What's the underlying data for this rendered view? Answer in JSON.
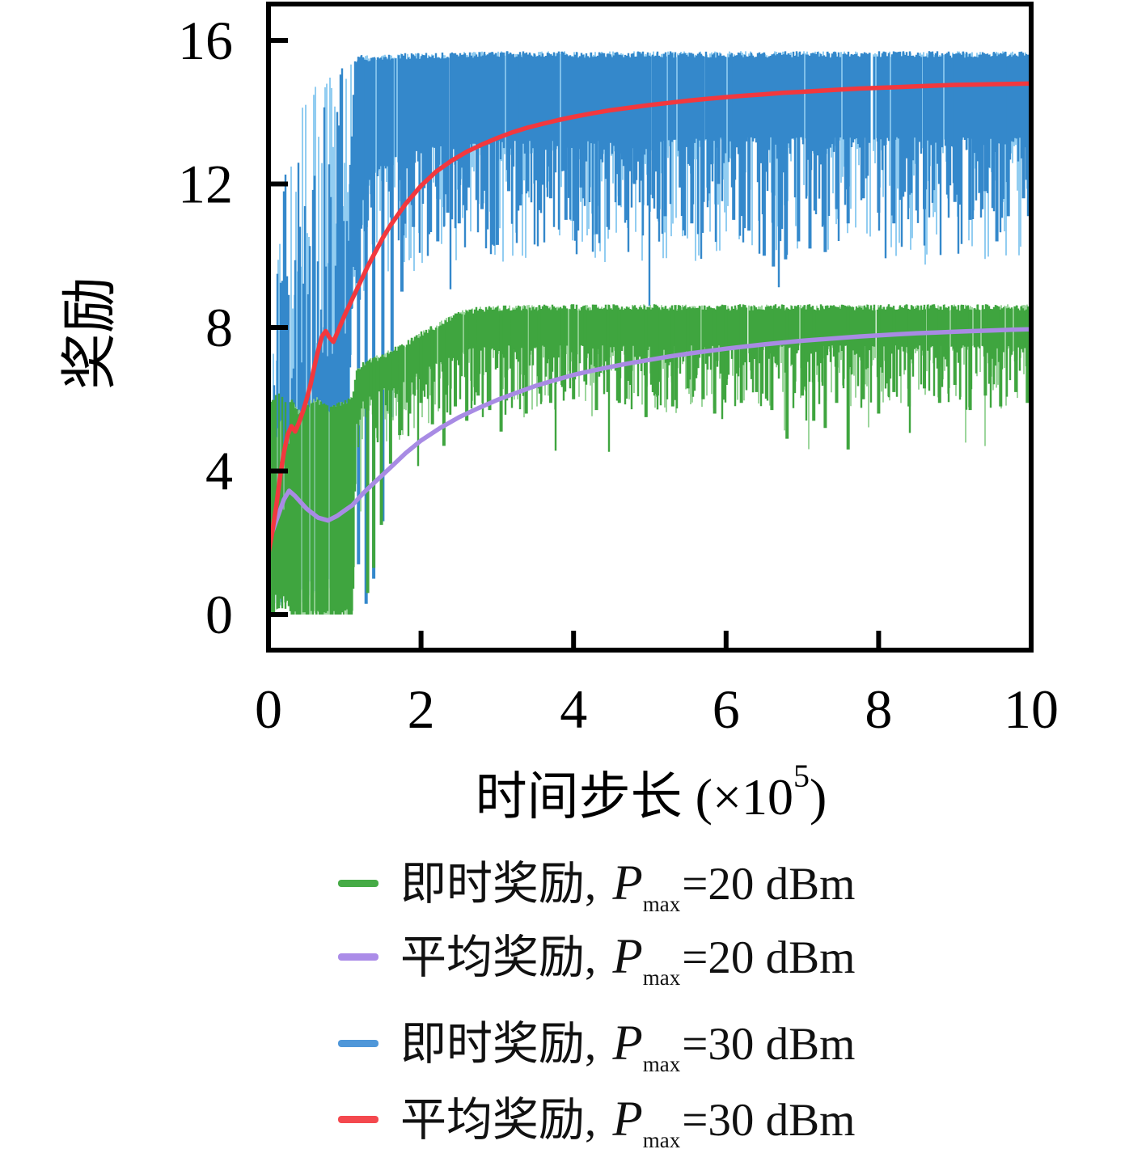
{
  "figure": {
    "background": "#ffffff",
    "axis_color": "#000000",
    "ylabel": "奖励",
    "xlabel": {
      "text": "时间步长",
      "unit_prefix": " (×10",
      "unit_sup": "5",
      "unit_suffix": ")"
    }
  },
  "chart_data": {
    "type": "line",
    "title": "",
    "xlabel": "时间步长 (×10⁵)",
    "ylabel": "奖励",
    "xlim": [
      0,
      10
    ],
    "ylim": [
      0,
      16
    ],
    "xticks": [
      0,
      2,
      4,
      6,
      8,
      10
    ],
    "yticks": [
      0,
      4,
      8,
      12,
      16
    ],
    "grid": false,
    "legend_position": "below-left",
    "series": [
      {
        "name": "即时奖励, Pmax=30 dBm",
        "kind": "noisy",
        "color": "#3488cb",
        "color_light": "#7fc4ee",
        "seed": 1337,
        "seed_light": 77,
        "band": {
          "x": [
            0,
            0.1,
            0.2,
            0.3,
            0.4,
            0.5,
            0.6,
            0.7,
            0.8,
            0.9,
            1.0,
            1.05,
            1.1,
            1.2,
            1.4,
            1.7,
            2.0,
            3.0,
            4.0,
            5.0,
            6.0,
            7.0,
            8.0,
            9.0,
            10.0
          ],
          "top": [
            6.5,
            9.5,
            12.0,
            13.4,
            14.0,
            14.5,
            14.8,
            15.0,
            15.2,
            15.35,
            15.45,
            15.5,
            15.55,
            15.6,
            15.6,
            15.65,
            15.65,
            15.7,
            15.7,
            15.7,
            15.7,
            15.7,
            15.7,
            15.7,
            15.7
          ],
          "bottom": [
            0.2,
            0.2,
            0.25,
            0.3,
            0.3,
            0.35,
            0.4,
            0.5,
            0.7,
            1.0,
            2.0,
            5.0,
            9.0,
            11.8,
            12.4,
            12.8,
            13.0,
            13.2,
            13.2,
            13.2,
            13.3,
            13.3,
            13.3,
            13.3,
            13.3
          ]
        },
        "spikes": [
          [
            1.18,
            1.4
          ],
          [
            1.28,
            0.3
          ],
          [
            1.38,
            1.0
          ],
          [
            1.5,
            2.6
          ],
          [
            1.62,
            5.5
          ],
          [
            1.75,
            9.0
          ],
          [
            1.9,
            10.8
          ],
          [
            2.1,
            10.6
          ],
          [
            2.22,
            10.4
          ],
          [
            2.35,
            11.2
          ],
          [
            2.5,
            10.9
          ],
          [
            2.62,
            11.9
          ],
          [
            2.8,
            11.3
          ],
          [
            3.0,
            10.3
          ],
          [
            3.15,
            11.8
          ],
          [
            3.3,
            11.4
          ],
          [
            3.5,
            12.1
          ],
          [
            3.7,
            11.6
          ],
          [
            3.9,
            11.0
          ],
          [
            4.1,
            11.9
          ],
          [
            4.3,
            10.6
          ],
          [
            4.45,
            10.8
          ],
          [
            4.6,
            11.4
          ],
          [
            4.8,
            12.0
          ],
          [
            5.0,
            11.7
          ],
          [
            5.2,
            11.1
          ],
          [
            5.4,
            11.9
          ],
          [
            5.55,
            10.9
          ],
          [
            5.7,
            11.5
          ],
          [
            5.9,
            12.0
          ],
          [
            6.1,
            11.0
          ],
          [
            6.3,
            10.7
          ],
          [
            6.5,
            10.0
          ],
          [
            6.62,
            9.7
          ],
          [
            6.78,
            9.9
          ],
          [
            6.95,
            10.4
          ],
          [
            7.1,
            10.2
          ],
          [
            7.3,
            10.1
          ],
          [
            7.45,
            11.3
          ],
          [
            7.6,
            10.9
          ],
          [
            7.8,
            11.6
          ],
          [
            8.0,
            11.2
          ],
          [
            8.2,
            10.9
          ],
          [
            8.4,
            11.7
          ],
          [
            8.6,
            11.3
          ],
          [
            8.8,
            12.0
          ],
          [
            9.0,
            11.5
          ],
          [
            9.2,
            11.0
          ],
          [
            9.4,
            11.8
          ],
          [
            9.55,
            10.4
          ],
          [
            9.7,
            11.1
          ],
          [
            9.9,
            11.6
          ]
        ]
      },
      {
        "name": "即时奖励, Pmax=20 dBm",
        "kind": "noisy",
        "color": "#3fa53f",
        "color_light": "#8ccf8c",
        "seed": 4242,
        "seed_light": 99,
        "band": {
          "x": [
            0,
            0.2,
            0.4,
            0.6,
            0.8,
            1.0,
            1.1,
            1.15,
            1.3,
            1.5,
            1.8,
            2.0,
            2.3,
            2.6,
            3.0,
            4.0,
            5.0,
            6.0,
            7.0,
            8.0,
            9.0,
            10.0
          ],
          "top": [
            5.9,
            6.4,
            5.7,
            6.1,
            5.8,
            6.0,
            6.1,
            6.9,
            7.15,
            7.3,
            7.6,
            7.9,
            8.25,
            8.55,
            8.62,
            8.65,
            8.65,
            8.65,
            8.65,
            8.65,
            8.65,
            8.65
          ],
          "bottom": [
            0.1,
            0.1,
            0.1,
            0.1,
            0.1,
            0.1,
            0.3,
            5.7,
            6.1,
            6.3,
            6.5,
            6.8,
            7.1,
            7.4,
            7.5,
            7.5,
            7.5,
            7.5,
            7.5,
            7.5,
            7.5,
            7.5
          ]
        },
        "spikes": [
          [
            1.3,
            0.6
          ],
          [
            1.38,
            1.3
          ],
          [
            1.48,
            2.5
          ],
          [
            1.6,
            4.2
          ],
          [
            1.72,
            5.0
          ],
          [
            1.85,
            5.6
          ],
          [
            2.0,
            5.9
          ],
          [
            2.15,
            5.3
          ],
          [
            2.3,
            4.7
          ],
          [
            2.45,
            5.8
          ],
          [
            2.6,
            5.4
          ],
          [
            2.75,
            6.1
          ],
          [
            2.9,
            5.7
          ],
          [
            3.05,
            5.1
          ],
          [
            3.2,
            6.2
          ],
          [
            3.38,
            5.6
          ],
          [
            3.55,
            6.3
          ],
          [
            3.7,
            5.9
          ],
          [
            3.85,
            6.4
          ],
          [
            4.0,
            6.0
          ],
          [
            4.15,
            6.5
          ],
          [
            4.3,
            5.7
          ],
          [
            4.45,
            6.2
          ],
          [
            4.6,
            5.9
          ],
          [
            4.75,
            6.4
          ],
          [
            4.95,
            5.5
          ],
          [
            5.1,
            6.1
          ],
          [
            5.3,
            5.8
          ],
          [
            5.5,
            6.3
          ],
          [
            5.7,
            6.0
          ],
          [
            5.85,
            5.6
          ],
          [
            6.0,
            6.4
          ],
          [
            6.2,
            5.9
          ],
          [
            6.4,
            6.2
          ],
          [
            6.6,
            5.7
          ],
          [
            6.8,
            4.9
          ],
          [
            7.0,
            6.1
          ],
          [
            7.15,
            5.4
          ],
          [
            7.3,
            5.2
          ],
          [
            7.45,
            5.9
          ],
          [
            7.6,
            4.6
          ],
          [
            7.8,
            6.0
          ],
          [
            8.0,
            5.6
          ],
          [
            8.2,
            6.2
          ],
          [
            8.4,
            5.8
          ],
          [
            8.6,
            6.3
          ],
          [
            8.8,
            5.9
          ],
          [
            9.0,
            6.4
          ],
          [
            9.2,
            5.7
          ],
          [
            9.4,
            6.1
          ],
          [
            9.6,
            5.8
          ],
          [
            9.8,
            6.2
          ],
          [
            9.95,
            5.9
          ]
        ]
      },
      {
        "name": "平均奖励, Pmax=20 dBm",
        "kind": "smooth",
        "color": "#a88be4",
        "points": [
          [
            0,
            2.0
          ],
          [
            0.1,
            2.6
          ],
          [
            0.2,
            3.2
          ],
          [
            0.27,
            3.45
          ],
          [
            0.35,
            3.3
          ],
          [
            0.5,
            2.95
          ],
          [
            0.65,
            2.7
          ],
          [
            0.78,
            2.62
          ],
          [
            0.9,
            2.75
          ],
          [
            1.0,
            2.9
          ],
          [
            1.1,
            3.05
          ],
          [
            1.25,
            3.4
          ],
          [
            1.4,
            3.7
          ],
          [
            1.6,
            4.1
          ],
          [
            1.8,
            4.5
          ],
          [
            2.0,
            4.85
          ],
          [
            2.25,
            5.2
          ],
          [
            2.5,
            5.5
          ],
          [
            2.75,
            5.75
          ],
          [
            3.0,
            5.98
          ],
          [
            3.25,
            6.18
          ],
          [
            3.5,
            6.37
          ],
          [
            3.75,
            6.53
          ],
          [
            4.0,
            6.68
          ],
          [
            4.25,
            6.8
          ],
          [
            4.5,
            6.91
          ],
          [
            4.75,
            7.01
          ],
          [
            5.0,
            7.1
          ],
          [
            5.25,
            7.19
          ],
          [
            5.5,
            7.27
          ],
          [
            5.75,
            7.34
          ],
          [
            6.0,
            7.41
          ],
          [
            6.25,
            7.47
          ],
          [
            6.5,
            7.53
          ],
          [
            6.75,
            7.58
          ],
          [
            7.0,
            7.63
          ],
          [
            7.25,
            7.67
          ],
          [
            7.5,
            7.71
          ],
          [
            7.75,
            7.75
          ],
          [
            8.0,
            7.78
          ],
          [
            8.25,
            7.81
          ],
          [
            8.5,
            7.84
          ],
          [
            8.75,
            7.86
          ],
          [
            9.0,
            7.88
          ],
          [
            9.25,
            7.9
          ],
          [
            9.5,
            7.92
          ],
          [
            9.75,
            7.94
          ],
          [
            10,
            7.95
          ]
        ]
      },
      {
        "name": "平均奖励, Pmax=30 dBm",
        "kind": "smooth",
        "color": "#f2383e",
        "points": [
          [
            0,
            1.7
          ],
          [
            0.05,
            2.3
          ],
          [
            0.1,
            3.0
          ],
          [
            0.15,
            3.8
          ],
          [
            0.2,
            4.5
          ],
          [
            0.25,
            5.0
          ],
          [
            0.3,
            5.25
          ],
          [
            0.35,
            5.1
          ],
          [
            0.4,
            5.35
          ],
          [
            0.45,
            5.65
          ],
          [
            0.5,
            6.0
          ],
          [
            0.55,
            6.4
          ],
          [
            0.6,
            6.9
          ],
          [
            0.65,
            7.35
          ],
          [
            0.7,
            7.75
          ],
          [
            0.75,
            7.9
          ],
          [
            0.8,
            7.72
          ],
          [
            0.85,
            7.6
          ],
          [
            0.9,
            7.85
          ],
          [
            0.95,
            8.1
          ],
          [
            1.0,
            8.35
          ],
          [
            1.1,
            8.8
          ],
          [
            1.2,
            9.25
          ],
          [
            1.3,
            9.7
          ],
          [
            1.4,
            10.1
          ],
          [
            1.5,
            10.5
          ],
          [
            1.6,
            10.85
          ],
          [
            1.7,
            11.15
          ],
          [
            1.8,
            11.45
          ],
          [
            1.9,
            11.7
          ],
          [
            2.0,
            11.95
          ],
          [
            2.2,
            12.35
          ],
          [
            2.4,
            12.65
          ],
          [
            2.6,
            12.9
          ],
          [
            2.8,
            13.1
          ],
          [
            3.0,
            13.28
          ],
          [
            3.2,
            13.44
          ],
          [
            3.4,
            13.57
          ],
          [
            3.6,
            13.68
          ],
          [
            3.8,
            13.78
          ],
          [
            4.0,
            13.87
          ],
          [
            4.25,
            13.97
          ],
          [
            4.5,
            14.06
          ],
          [
            4.75,
            14.13
          ],
          [
            5.0,
            14.2
          ],
          [
            5.25,
            14.26
          ],
          [
            5.5,
            14.32
          ],
          [
            5.75,
            14.37
          ],
          [
            6.0,
            14.42
          ],
          [
            6.25,
            14.46
          ],
          [
            6.5,
            14.5
          ],
          [
            6.75,
            14.54
          ],
          [
            7.0,
            14.57
          ],
          [
            7.25,
            14.6
          ],
          [
            7.5,
            14.63
          ],
          [
            7.75,
            14.66
          ],
          [
            8.0,
            14.68
          ],
          [
            8.25,
            14.7
          ],
          [
            8.5,
            14.72
          ],
          [
            8.75,
            14.74
          ],
          [
            9.0,
            14.76
          ],
          [
            9.25,
            14.77
          ],
          [
            9.5,
            14.78
          ],
          [
            9.75,
            14.79
          ],
          [
            10,
            14.8
          ]
        ]
      }
    ]
  },
  "legend": {
    "items": [
      {
        "prefix": "即时奖励, ",
        "sym": "P",
        "sub": "max",
        "suffix": "=20 dBm",
        "color": "#46ab46"
      },
      {
        "prefix": "平均奖励, ",
        "sym": "P",
        "sub": "max",
        "suffix": "=20 dBm",
        "color": "#ab8ce8"
      },
      {
        "prefix": "即时奖励, ",
        "sym": "P",
        "sub": "max",
        "suffix": "=30 dBm",
        "color": "#4f97d9"
      },
      {
        "prefix": "平均奖励, ",
        "sym": "P",
        "sub": "max",
        "suffix": "=30 dBm",
        "color": "#f4484e"
      }
    ]
  }
}
